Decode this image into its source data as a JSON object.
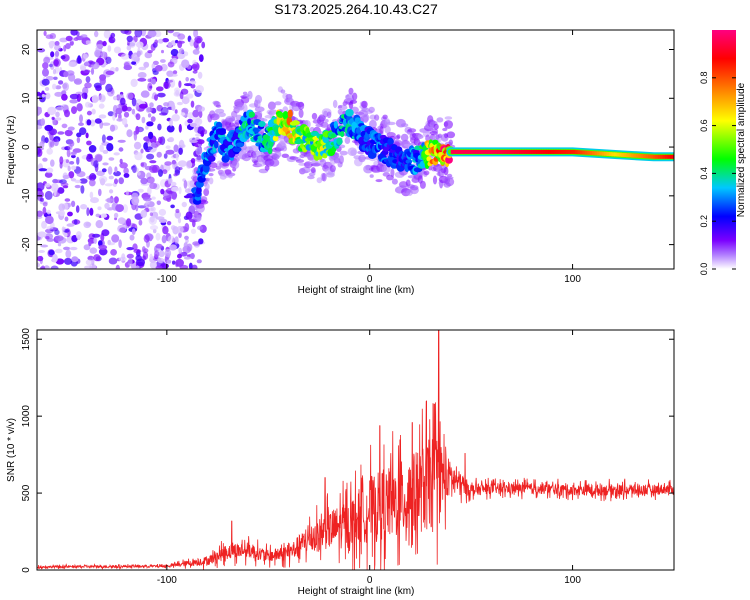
{
  "title": "S173.2025.264.10.43.C27",
  "chart_data": [
    {
      "type": "heatmap",
      "name": "spectrogram",
      "xlabel": "Height of straight line (km)",
      "ylabel": "Frequency (Hz)",
      "xlim": [
        -164,
        150
      ],
      "ylim": [
        -25,
        24
      ],
      "xticks": [
        -100,
        0,
        100
      ],
      "yticks": [
        -20,
        -10,
        0,
        10,
        20
      ],
      "colorbar": {
        "label": "Normalized spectral amplitude",
        "range": [
          0,
          1
        ],
        "ticks": [
          0.0,
          0.2,
          0.4,
          0.6,
          0.8
        ],
        "colors": [
          "#ffffff",
          "#7b00ff",
          "#0000ff",
          "#00c8ff",
          "#00ff00",
          "#ffff00",
          "#ff8000",
          "#ff0000",
          "#ff0080"
        ]
      },
      "noise_region_x": [
        -164,
        -86
      ],
      "ridge": {
        "x": [
          -86,
          -80,
          -75,
          -70,
          -65,
          -60,
          -55,
          -50,
          -45,
          -40,
          -35,
          -30,
          -25,
          -20,
          -15,
          -10,
          -5,
          0,
          5,
          10,
          15,
          20,
          25,
          30,
          35,
          40,
          60,
          80,
          100,
          120,
          140,
          150
        ],
        "y": [
          -10,
          -2,
          3,
          -1,
          2,
          5,
          3,
          1,
          5,
          5,
          2,
          1,
          0,
          1,
          3,
          5,
          3,
          1,
          0,
          -1,
          -2,
          -3,
          -2,
          -1,
          -1,
          -1,
          -1,
          -1,
          -1,
          -1.5,
          -2,
          -2
        ],
        "amplitude": [
          0.25,
          0.3,
          0.35,
          0.3,
          0.35,
          0.4,
          0.35,
          0.4,
          0.6,
          0.7,
          0.6,
          0.5,
          0.6,
          0.5,
          0.35,
          0.4,
          0.3,
          0.3,
          0.3,
          0.25,
          0.25,
          0.3,
          0.35,
          0.7,
          0.85,
          0.95,
          0.95,
          0.9,
          0.85,
          0.65,
          0.8,
          0.9
        ]
      }
    },
    {
      "type": "line",
      "name": "snr",
      "xlabel": "Height of straight line (km)",
      "ylabel": "SNR (10 * v/v)",
      "xlim": [
        -164,
        150
      ],
      "ylim": [
        0,
        1560
      ],
      "xticks": [
        -100,
        0,
        100
      ],
      "yticks": [
        0,
        500,
        1000,
        1500
      ],
      "color": "#ee2222",
      "envelope": {
        "x": [
          -164,
          -100,
          -80,
          -70,
          -60,
          -50,
          -40,
          -30,
          -20,
          -10,
          0,
          10,
          20,
          25,
          30,
          33,
          40,
          45,
          50,
          60,
          80,
          100,
          120,
          140,
          150
        ],
        "baseline": [
          20,
          25,
          60,
          120,
          130,
          90,
          110,
          200,
          260,
          300,
          400,
          430,
          480,
          520,
          560,
          600,
          600,
          560,
          520,
          530,
          530,
          520,
          520,
          520,
          530
        ],
        "spread": [
          15,
          15,
          60,
          100,
          100,
          80,
          100,
          180,
          250,
          320,
          420,
          480,
          520,
          560,
          600,
          600,
          200,
          140,
          80,
          70,
          70,
          70,
          75,
          70,
          60
        ]
      },
      "peaks": [
        {
          "x": -68,
          "y": 320
        },
        {
          "x": -22,
          "y": 600
        },
        {
          "x": 5,
          "y": 940
        },
        {
          "x": 21,
          "y": 960
        },
        {
          "x": 28,
          "y": 1100
        },
        {
          "x": 32,
          "y": 1080
        },
        {
          "x": 34,
          "y": 1560
        },
        {
          "x": 47,
          "y": 760
        }
      ]
    }
  ]
}
